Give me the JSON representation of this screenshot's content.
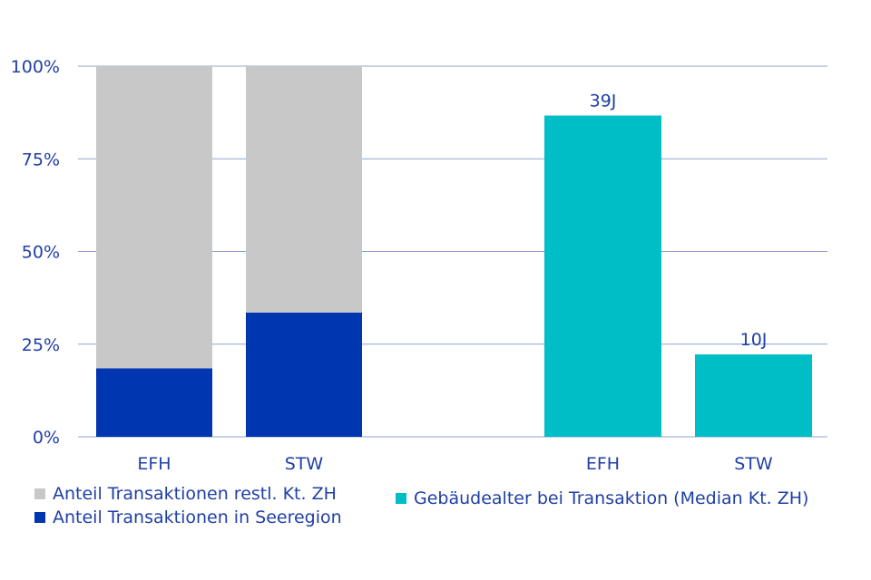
{
  "colors": {
    "grid": "#8fa3cf",
    "axis_text": "#1f3fa6",
    "gray": "#c8c8c8",
    "blue": "#0037b0",
    "teal": "#00bec6"
  },
  "chart_data": [
    {
      "type": "bar",
      "stacked": true,
      "categories": [
        "EFH",
        "STW"
      ],
      "y_ticks": [
        "0%",
        "25%",
        "50%",
        "75%",
        "100%"
      ],
      "ylim": [
        0,
        100
      ],
      "grid": true,
      "series": [
        {
          "name": "Anteil Transaktionen in Seeregion",
          "color": "#0037b0",
          "values": [
            18.5,
            33.5
          ]
        },
        {
          "name": "Anteil Transaktionen restl. Kt. ZH",
          "color": "#c8c8c8",
          "values": [
            81.5,
            66.5
          ]
        }
      ],
      "legend": [
        "Anteil Transaktionen restl. Kt. ZH",
        "Anteil Transaktionen in Seeregion"
      ]
    },
    {
      "type": "bar",
      "categories": [
        "EFH",
        "STW"
      ],
      "ylim": [
        0,
        45
      ],
      "series": [
        {
          "name": "Gebäudealter bei Transaktion (Median Kt. ZH)",
          "color": "#00bec6",
          "values": [
            39,
            10
          ]
        }
      ],
      "data_labels": [
        "39J",
        "10J"
      ],
      "legend": [
        "Gebäudealter bei Transaktion (Median Kt. ZH)"
      ]
    }
  ]
}
